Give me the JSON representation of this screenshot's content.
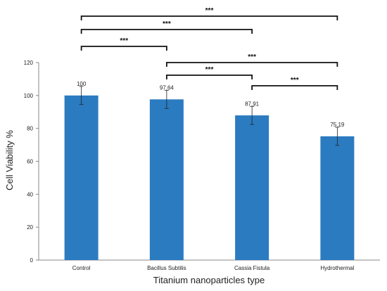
{
  "chart_data": {
    "type": "bar",
    "categories": [
      "Control",
      "Bacillus Subtilis",
      "Cassia Fistula",
      "Hydrothermal"
    ],
    "values": [
      100,
      97.64,
      87.91,
      75.19
    ],
    "value_labels": [
      "100",
      "97.64",
      "87.91",
      "75.19"
    ],
    "error": [
      5.5,
      5.5,
      5.5,
      5.5
    ],
    "xlabel": "Titanium nanoparticles type",
    "ylabel": "Cell Viability %",
    "ylim": [
      0,
      120
    ],
    "yticks": [
      "0",
      "20",
      "40",
      "60",
      "80",
      "100",
      "120"
    ],
    "grid": false,
    "bar_color": "#2b7bc0",
    "significance": [
      {
        "from": 0,
        "to": 3,
        "label": "***"
      },
      {
        "from": 0,
        "to": 2,
        "label": "***"
      },
      {
        "from": 0,
        "to": 1,
        "label": "***"
      },
      {
        "from": 1,
        "to": 3,
        "label": "***"
      },
      {
        "from": 1,
        "to": 2,
        "label": "***"
      },
      {
        "from": 2,
        "to": 3,
        "label": "***"
      }
    ]
  }
}
